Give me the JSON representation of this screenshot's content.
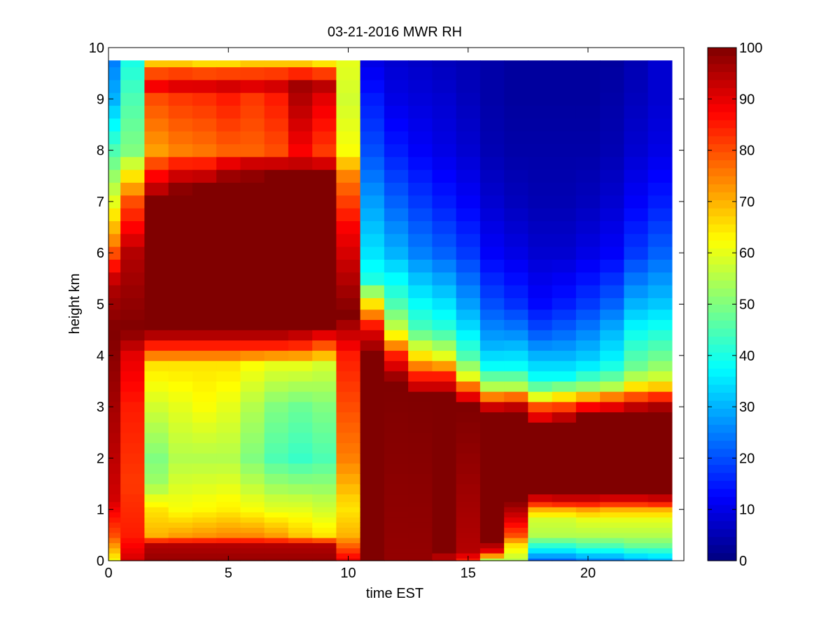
{
  "chart_data": {
    "type": "heatmap",
    "title": "03-21-2016 MWR RH",
    "xlabel": "time EST",
    "ylabel": "height km",
    "xlim": [
      0,
      24
    ],
    "ylim": [
      0,
      10
    ],
    "xticks": [
      "0",
      "5",
      "10",
      "15",
      "20"
    ],
    "yticks": [
      "0",
      "1",
      "2",
      "3",
      "4",
      "5",
      "6",
      "7",
      "8",
      "9",
      "10"
    ],
    "colorbar": {
      "min": 0,
      "max": 100,
      "ticks": [
        "0",
        "10",
        "20",
        "30",
        "40",
        "50",
        "60",
        "70",
        "80",
        "90",
        "100"
      ],
      "colormap": "jet"
    },
    "x": [
      0,
      1,
      2,
      3,
      4,
      5,
      6,
      7,
      8,
      9,
      10,
      11,
      12,
      13,
      14,
      15,
      16,
      17,
      18,
      19,
      20,
      21,
      22,
      23
    ],
    "y": [
      0,
      0.1,
      0.2,
      0.3,
      0.4,
      0.5,
      0.6,
      0.7,
      0.8,
      0.9,
      1.0,
      1.1,
      1.2,
      1.4,
      1.6,
      1.8,
      2.0,
      2.2,
      2.4,
      2.6,
      2.8,
      3.0,
      3.2,
      3.4,
      3.6,
      3.8,
      4.0,
      4.2,
      4.4,
      4.6,
      4.8,
      5.0,
      5.25,
      5.5,
      5.75,
      6.0,
      6.25,
      6.5,
      6.75,
      7.0,
      7.25,
      7.5,
      7.75,
      8.0,
      8.25,
      8.5,
      8.75,
      9.0,
      9.25,
      9.5,
      9.75
    ],
    "columns": [
      [
        [
          0,
          62
        ],
        [
          0.5,
          80
        ],
        [
          1.2,
          92
        ],
        [
          4.5,
          100
        ],
        [
          5.4,
          95
        ],
        [
          6.2,
          75
        ],
        [
          7,
          60
        ],
        [
          8,
          45
        ],
        [
          9,
          30
        ],
        [
          9.75,
          25
        ]
      ],
      [
        [
          0,
          92
        ],
        [
          0.5,
          85
        ],
        [
          1.5,
          82
        ],
        [
          3,
          85
        ],
        [
          4,
          90
        ],
        [
          4.5,
          100
        ],
        [
          6,
          95
        ],
        [
          7,
          80
        ],
        [
          7.5,
          65
        ],
        [
          8,
          50
        ],
        [
          9,
          45
        ],
        [
          9.75,
          40
        ]
      ],
      [
        [
          0,
          98
        ],
        [
          0.3,
          95
        ],
        [
          0.5,
          70
        ],
        [
          1,
          65
        ],
        [
          1.5,
          53
        ],
        [
          2,
          50
        ],
        [
          3,
          58
        ],
        [
          3.8,
          65
        ],
        [
          4.2,
          85
        ],
        [
          4.5,
          100
        ],
        [
          7,
          100
        ],
        [
          7.6,
          85
        ],
        [
          8,
          72
        ],
        [
          9,
          80
        ],
        [
          9.3,
          90
        ],
        [
          9.75,
          68
        ]
      ],
      [
        [
          0,
          98
        ],
        [
          0.3,
          95
        ],
        [
          0.5,
          72
        ],
        [
          1,
          62
        ],
        [
          2,
          55
        ],
        [
          3,
          60
        ],
        [
          3.8,
          65
        ],
        [
          4.2,
          85
        ],
        [
          4.5,
          100
        ],
        [
          7.2,
          100
        ],
        [
          7.6,
          90
        ],
        [
          8,
          75
        ],
        [
          9,
          82
        ],
        [
          9.3,
          92
        ],
        [
          9.75,
          68
        ]
      ],
      [
        [
          0,
          98
        ],
        [
          0.3,
          95
        ],
        [
          0.5,
          73
        ],
        [
          1,
          63
        ],
        [
          2,
          55
        ],
        [
          3,
          62
        ],
        [
          3.8,
          65
        ],
        [
          4.2,
          85
        ],
        [
          4.5,
          100
        ],
        [
          7.3,
          100
        ],
        [
          7.6,
          90
        ],
        [
          8,
          76
        ],
        [
          9,
          83
        ],
        [
          9.3,
          92
        ],
        [
          9.75,
          66
        ]
      ],
      [
        [
          0,
          98
        ],
        [
          0.3,
          95
        ],
        [
          0.5,
          74
        ],
        [
          1,
          64
        ],
        [
          2,
          55
        ],
        [
          3,
          60
        ],
        [
          3.8,
          65
        ],
        [
          4.2,
          85
        ],
        [
          4.5,
          100
        ],
        [
          7.4,
          100
        ],
        [
          7.7,
          92
        ],
        [
          8,
          78
        ],
        [
          9,
          85
        ],
        [
          9.3,
          93
        ],
        [
          9.75,
          66
        ]
      ],
      [
        [
          0,
          98
        ],
        [
          0.3,
          95
        ],
        [
          0.5,
          74
        ],
        [
          1,
          62
        ],
        [
          2,
          50
        ],
        [
          3,
          55
        ],
        [
          3.8,
          62
        ],
        [
          4.2,
          85
        ],
        [
          4.5,
          100
        ],
        [
          7.4,
          100
        ],
        [
          7.7,
          95
        ],
        [
          8,
          78
        ],
        [
          9,
          82
        ],
        [
          9.3,
          92
        ],
        [
          9.75,
          68
        ]
      ],
      [
        [
          0,
          98
        ],
        [
          0.3,
          95
        ],
        [
          0.5,
          72
        ],
        [
          1,
          60
        ],
        [
          2,
          45
        ],
        [
          3,
          50
        ],
        [
          3.8,
          60
        ],
        [
          4.2,
          85
        ],
        [
          4.5,
          100
        ],
        [
          7.5,
          100
        ],
        [
          7.7,
          95
        ],
        [
          8,
          80
        ],
        [
          9,
          85
        ],
        [
          9.3,
          93
        ],
        [
          9.75,
          68
        ]
      ],
      [
        [
          0,
          98
        ],
        [
          0.3,
          95
        ],
        [
          0.5,
          68
        ],
        [
          1,
          60
        ],
        [
          2,
          43
        ],
        [
          3,
          48
        ],
        [
          3.8,
          60
        ],
        [
          4.3,
          90
        ],
        [
          4.6,
          100
        ],
        [
          7.5,
          100
        ],
        [
          7.8,
          92
        ],
        [
          8,
          88
        ],
        [
          9,
          95
        ],
        [
          9.3,
          97
        ],
        [
          9.75,
          68
        ]
      ],
      [
        [
          0,
          98
        ],
        [
          0.3,
          95
        ],
        [
          0.5,
          65
        ],
        [
          1,
          58
        ],
        [
          2,
          45
        ],
        [
          3,
          50
        ],
        [
          3.8,
          58
        ],
        [
          4.3,
          85
        ],
        [
          4.6,
          100
        ],
        [
          7.5,
          100
        ],
        [
          7.8,
          90
        ],
        [
          8,
          82
        ],
        [
          9,
          90
        ],
        [
          9.3,
          95
        ],
        [
          9.75,
          65
        ]
      ],
      [
        [
          0,
          90
        ],
        [
          0.5,
          70
        ],
        [
          1,
          65
        ],
        [
          2,
          75
        ],
        [
          3,
          80
        ],
        [
          4,
          85
        ],
        [
          4.8,
          100
        ],
        [
          5.5,
          95
        ],
        [
          6.5,
          88
        ],
        [
          7.5,
          75
        ],
        [
          8,
          62
        ],
        [
          9,
          58
        ],
        [
          9.75,
          60
        ]
      ],
      [
        [
          0,
          100
        ],
        [
          4,
          100
        ],
        [
          4.5,
          90
        ],
        [
          5,
          65
        ],
        [
          5.5,
          40
        ],
        [
          6,
          35
        ],
        [
          7,
          28
        ],
        [
          8,
          20
        ],
        [
          9,
          15
        ],
        [
          9.75,
          10
        ]
      ],
      [
        [
          0,
          98
        ],
        [
          3.5,
          100
        ],
        [
          4,
          85
        ],
        [
          4.5,
          58
        ],
        [
          5,
          45
        ],
        [
          6,
          30
        ],
        [
          7,
          22
        ],
        [
          8,
          15
        ],
        [
          9,
          10
        ],
        [
          9.75,
          8
        ]
      ],
      [
        [
          0,
          98
        ],
        [
          3.2,
          100
        ],
        [
          3.6,
          85
        ],
        [
          4,
          65
        ],
        [
          4.5,
          45
        ],
        [
          5,
          38
        ],
        [
          6,
          25
        ],
        [
          7,
          18
        ],
        [
          8,
          12
        ],
        [
          9,
          9
        ],
        [
          9.75,
          7
        ]
      ],
      [
        [
          0,
          95
        ],
        [
          0.1,
          95
        ],
        [
          0.2,
          100
        ],
        [
          3.2,
          100
        ],
        [
          3.6,
          85
        ],
        [
          4,
          60
        ],
        [
          4.5,
          42
        ],
        [
          5,
          35
        ],
        [
          6,
          22
        ],
        [
          7,
          15
        ],
        [
          8,
          10
        ],
        [
          9,
          8
        ],
        [
          9.75,
          6
        ]
      ],
      [
        [
          0,
          85
        ],
        [
          0.2,
          95
        ],
        [
          3,
          100
        ],
        [
          3.3,
          85
        ],
        [
          3.6,
          60
        ],
        [
          4,
          45
        ],
        [
          4.5,
          35
        ],
        [
          5,
          28
        ],
        [
          6,
          18
        ],
        [
          7,
          12
        ],
        [
          8,
          8
        ],
        [
          9,
          6
        ],
        [
          9.75,
          5
        ]
      ],
      [
        [
          0,
          55
        ],
        [
          0.2,
          90
        ],
        [
          0.4,
          100
        ],
        [
          2.9,
          100
        ],
        [
          3.1,
          85
        ],
        [
          3.4,
          55
        ],
        [
          3.8,
          38
        ],
        [
          4.2,
          30
        ],
        [
          5,
          20
        ],
        [
          6,
          12
        ],
        [
          7,
          8
        ],
        [
          8,
          5
        ],
        [
          9,
          4
        ],
        [
          9.75,
          4
        ]
      ],
      [
        [
          0,
          55
        ],
        [
          0.3,
          65
        ],
        [
          0.5,
          80
        ],
        [
          0.8,
          90
        ],
        [
          1.1,
          98
        ],
        [
          1.2,
          100
        ],
        [
          2.9,
          100
        ],
        [
          3.1,
          88
        ],
        [
          3.4,
          55
        ],
        [
          3.8,
          38
        ],
        [
          4.5,
          25
        ],
        [
          5,
          17
        ],
        [
          6,
          10
        ],
        [
          7,
          6
        ],
        [
          8,
          4
        ],
        [
          9,
          3
        ],
        [
          9.75,
          3
        ]
      ],
      [
        [
          0,
          22
        ],
        [
          0.3,
          42
        ],
        [
          0.5,
          55
        ],
        [
          0.8,
          58
        ],
        [
          1,
          70
        ],
        [
          1.15,
          88
        ],
        [
          1.3,
          100
        ],
        [
          2.6,
          100
        ],
        [
          2.8,
          90
        ],
        [
          3.0,
          80
        ],
        [
          3.2,
          60
        ],
        [
          3.5,
          40
        ],
        [
          4,
          30
        ],
        [
          4.5,
          20
        ],
        [
          5,
          13
        ],
        [
          6,
          8
        ],
        [
          7,
          5
        ],
        [
          8,
          4
        ],
        [
          9,
          3
        ],
        [
          9.75,
          3
        ]
      ],
      [
        [
          0,
          22
        ],
        [
          0.3,
          42
        ],
        [
          0.5,
          55
        ],
        [
          0.8,
          58
        ],
        [
          1,
          70
        ],
        [
          1.15,
          90
        ],
        [
          1.3,
          100
        ],
        [
          2.7,
          100
        ],
        [
          2.9,
          88
        ],
        [
          3.1,
          75
        ],
        [
          3.3,
          55
        ],
        [
          3.6,
          38
        ],
        [
          4,
          30
        ],
        [
          4.5,
          22
        ],
        [
          5,
          15
        ],
        [
          6,
          8
        ],
        [
          7,
          5
        ],
        [
          8,
          4
        ],
        [
          9,
          3
        ],
        [
          9.75,
          3
        ]
      ],
      [
        [
          0,
          25
        ],
        [
          0.3,
          45
        ],
        [
          0.5,
          55
        ],
        [
          0.8,
          60
        ],
        [
          1,
          72
        ],
        [
          1.15,
          90
        ],
        [
          1.3,
          100
        ],
        [
          2.8,
          100
        ],
        [
          3.0,
          88
        ],
        [
          3.2,
          70
        ],
        [
          3.4,
          52
        ],
        [
          3.7,
          38
        ],
        [
          4,
          32
        ],
        [
          4.5,
          25
        ],
        [
          5,
          18
        ],
        [
          6,
          10
        ],
        [
          7,
          6
        ],
        [
          8,
          4
        ],
        [
          9,
          3
        ],
        [
          9.75,
          3
        ]
      ],
      [
        [
          0,
          25
        ],
        [
          0.3,
          45
        ],
        [
          0.5,
          55
        ],
        [
          0.8,
          60
        ],
        [
          1,
          70
        ],
        [
          1.15,
          88
        ],
        [
          1.3,
          100
        ],
        [
          2.8,
          100
        ],
        [
          3.0,
          90
        ],
        [
          3.2,
          75
        ],
        [
          3.4,
          55
        ],
        [
          3.7,
          42
        ],
        [
          4,
          36
        ],
        [
          4.5,
          30
        ],
        [
          5,
          22
        ],
        [
          6,
          12
        ],
        [
          7,
          8
        ],
        [
          8,
          5
        ],
        [
          9,
          4
        ],
        [
          9.75,
          3
        ]
      ],
      [
        [
          0,
          28
        ],
        [
          0.3,
          48
        ],
        [
          0.5,
          55
        ],
        [
          0.8,
          60
        ],
        [
          1,
          70
        ],
        [
          1.15,
          88
        ],
        [
          1.3,
          100
        ],
        [
          2.9,
          100
        ],
        [
          3.1,
          88
        ],
        [
          3.3,
          72
        ],
        [
          3.5,
          58
        ],
        [
          3.8,
          48
        ],
        [
          4,
          45
        ],
        [
          4.5,
          38
        ],
        [
          5,
          30
        ],
        [
          6,
          18
        ],
        [
          7,
          12
        ],
        [
          8,
          8
        ],
        [
          9,
          6
        ],
        [
          9.75,
          5
        ]
      ],
      [
        [
          0,
          30
        ],
        [
          0.3,
          48
        ],
        [
          0.5,
          55
        ],
        [
          0.8,
          60
        ],
        [
          1,
          70
        ],
        [
          1.15,
          90
        ],
        [
          1.3,
          100
        ],
        [
          2.9,
          100
        ],
        [
          3.1,
          92
        ],
        [
          3.3,
          75
        ],
        [
          3.5,
          60
        ],
        [
          3.8,
          52
        ],
        [
          4,
          48
        ],
        [
          4.5,
          40
        ],
        [
          5,
          32
        ],
        [
          6,
          22
        ],
        [
          7,
          15
        ],
        [
          8,
          10
        ],
        [
          9,
          8
        ],
        [
          9.75,
          8
        ]
      ]
    ]
  }
}
